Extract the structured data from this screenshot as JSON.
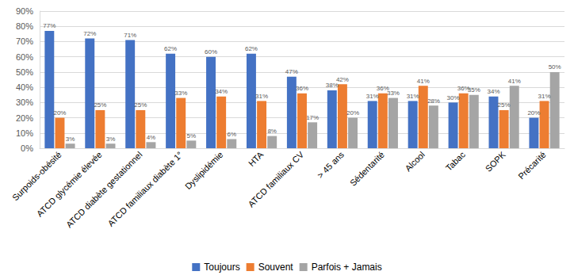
{
  "chart_data": {
    "type": "bar",
    "categories": [
      "Surpoids-obésité",
      "ATCD glycémie élevée",
      "ATCD diabète gestationnel",
      "ATCD familiaux diabète 1°",
      "Dyslipidémie",
      "HTA",
      "ATCD familiaux CV",
      "> 45 ans",
      "Sédentarité",
      "Alcool",
      "Tabac",
      "SOPK",
      "Précarité"
    ],
    "series": [
      {
        "name": "Toujours",
        "color": "#4472c4",
        "values": [
          77,
          72,
          71,
          62,
          60,
          62,
          47,
          38,
          31,
          31,
          30,
          34,
          20
        ],
        "value_labels": [
          "77%",
          "72%",
          "71%",
          "62%",
          "60%",
          "62%",
          "47%",
          "38%",
          "31%",
          "31%",
          "30%",
          "34%",
          "20%"
        ]
      },
      {
        "name": "Souvent",
        "color": "#ed7d31",
        "values": [
          20,
          25,
          25,
          33,
          34,
          31,
          36,
          42,
          36,
          41,
          36,
          25,
          31
        ],
        "value_labels": [
          "20%",
          "25%",
          "25%",
          "33%",
          "34%",
          "31%",
          "36%",
          "42%",
          "36%",
          "41%",
          "36%",
          "25%",
          "31%"
        ]
      },
      {
        "name": "Parfois + Jamais",
        "color": "#a5a5a5",
        "values": [
          3,
          3,
          4,
          5,
          6,
          8,
          17,
          20,
          33,
          28,
          35,
          41,
          50
        ],
        "value_labels": [
          "3%",
          "3%",
          "4%",
          "5%",
          "6%",
          "8%",
          "17%",
          "20%",
          "33%",
          "28%",
          "35%",
          "41%",
          "50%"
        ]
      }
    ],
    "ylim": [
      0,
      90
    ],
    "yticks": [
      {
        "value": 0,
        "label": "0%"
      },
      {
        "value": 10,
        "label": "10%"
      },
      {
        "value": 20,
        "label": "20%"
      },
      {
        "value": 30,
        "label": "30%"
      },
      {
        "value": 40,
        "label": "40%"
      },
      {
        "value": 50,
        "label": "50%"
      },
      {
        "value": 60,
        "label": "60%"
      },
      {
        "value": 70,
        "label": "70%"
      },
      {
        "value": 80,
        "label": "80%"
      },
      {
        "value": 90,
        "label": "90%"
      }
    ],
    "grid": true,
    "legend": "bottom",
    "data_labels": true
  }
}
